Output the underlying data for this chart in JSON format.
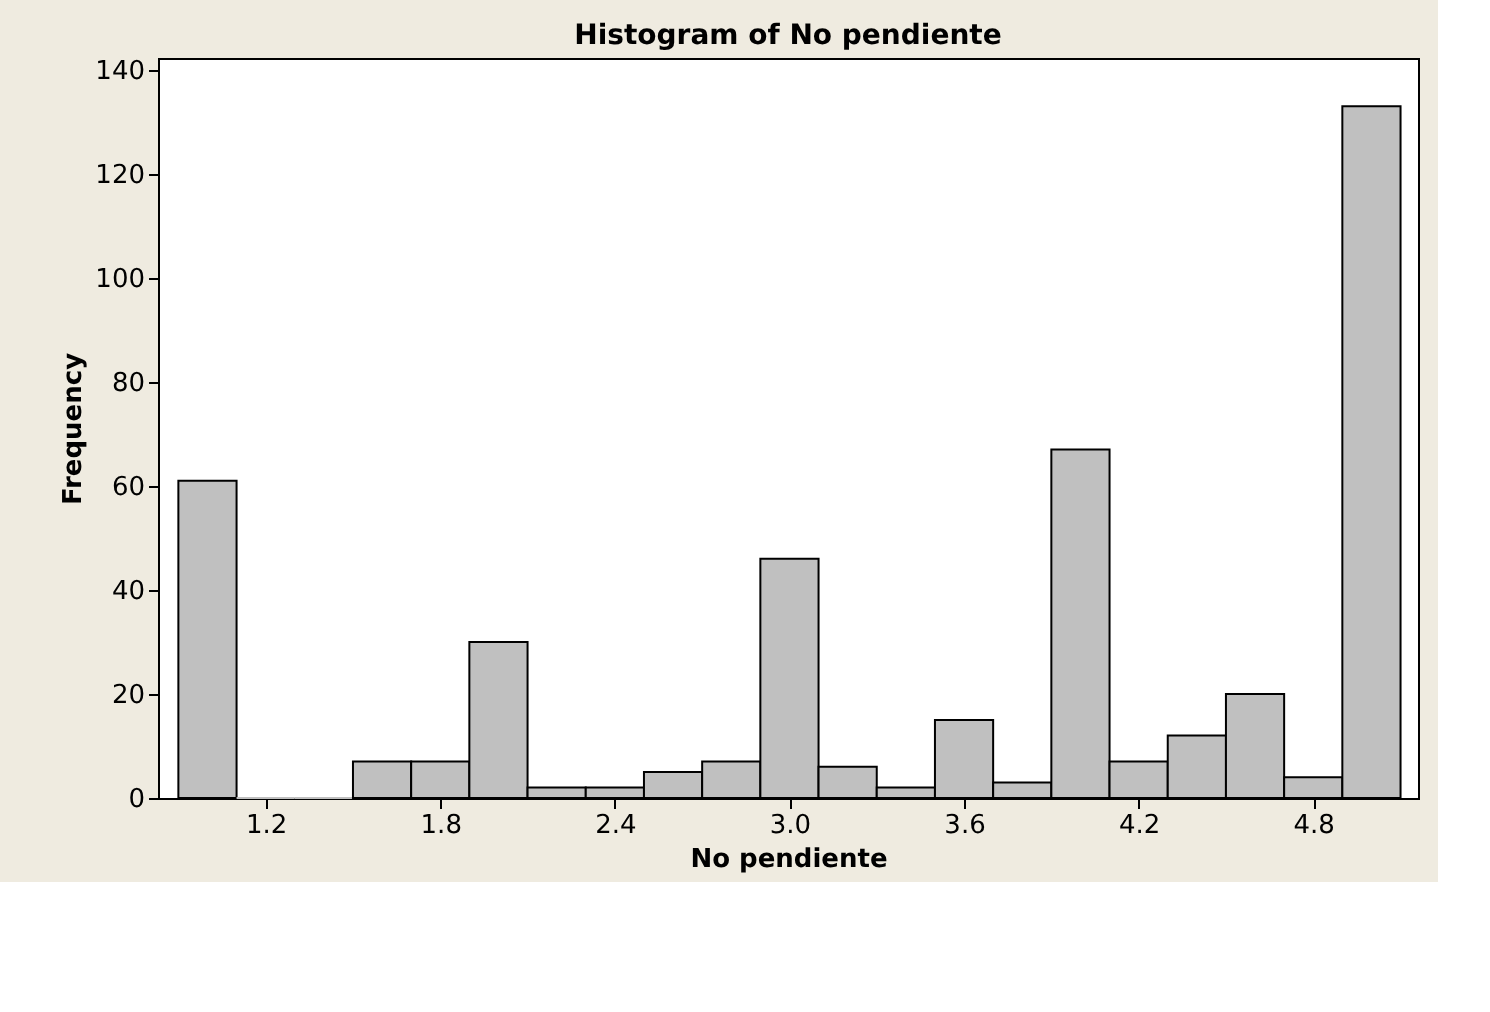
{
  "chart_data": {
    "type": "histogram",
    "title": "Histogram of No pendiente",
    "xlabel": "No pendiente",
    "ylabel": "Frequency",
    "bins": [
      0.9,
      1.1,
      1.3,
      1.5,
      1.7,
      1.9,
      2.1,
      2.3,
      2.5,
      2.7,
      2.9,
      3.1,
      3.3,
      3.5,
      3.7,
      3.9,
      4.1,
      4.3,
      4.5,
      4.7,
      4.9,
      5.1
    ],
    "values": [
      61,
      0,
      0,
      7,
      7,
      30,
      2,
      2,
      5,
      7,
      46,
      6,
      2,
      15,
      3,
      67,
      7,
      12,
      20,
      4,
      133
    ],
    "color": "#c0c0c0",
    "xlim": [
      0.83,
      5.16
    ],
    "xticks": [
      1.2,
      1.8,
      2.4,
      {
        "value": 3.0,
        "label": "3.0"
      },
      3.6,
      4.2,
      4.8
    ],
    "ylim": [
      0,
      142.3
    ],
    "yticks": [
      0,
      20,
      40,
      60,
      80,
      100,
      120,
      140
    ],
    "grid": false
  }
}
